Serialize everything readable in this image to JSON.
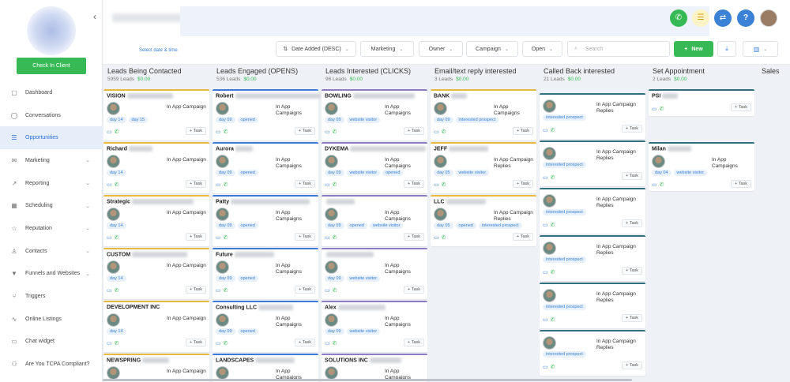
{
  "sidebar": {
    "checkin_label": "Check In Client",
    "items": [
      {
        "label": "Dashboard",
        "icon": "dashboard-icon",
        "glyph": "▢",
        "chev": ""
      },
      {
        "label": "Conversations",
        "icon": "chat-icon",
        "glyph": "◯",
        "chev": ""
      },
      {
        "label": "Opportunities",
        "icon": "opportunities-icon",
        "glyph": "☰",
        "chev": ""
      },
      {
        "label": "Marketing",
        "icon": "mail-icon",
        "glyph": "✉",
        "chev": "⌄"
      },
      {
        "label": "Reporting",
        "icon": "chart-icon",
        "glyph": "↗",
        "chev": "⌄"
      },
      {
        "label": "Scheduling",
        "icon": "calendar-icon",
        "glyph": "▦",
        "chev": "⌄"
      },
      {
        "label": "Reputation",
        "icon": "star-icon",
        "glyph": "☆",
        "chev": "⌄"
      },
      {
        "label": "Contacts",
        "icon": "user-icon",
        "glyph": "♙",
        "chev": "⌄"
      },
      {
        "label": "Funnels and Websites",
        "icon": "funnel-icon",
        "glyph": "▼",
        "chev": "⌄"
      },
      {
        "label": "Triggers",
        "icon": "trigger-icon",
        "glyph": "⑂",
        "chev": ""
      },
      {
        "label": "Online Listings",
        "icon": "pulse-icon",
        "glyph": "∿",
        "chev": ""
      },
      {
        "label": "Chat widget",
        "icon": "chat-widget-icon",
        "glyph": "▭",
        "chev": ""
      },
      {
        "label": "Are You TCPA Compliant?",
        "icon": "group-icon",
        "glyph": "⚇",
        "chev": ""
      }
    ]
  },
  "filters": {
    "date_link": "Select date & time",
    "sort": "Date Added (DESC)",
    "pipeline": "Marketing",
    "owner": "Owner",
    "campaign": "Campaign",
    "status": "Open",
    "search_placeholder": "Search",
    "new_label": "New"
  },
  "columns": [
    {
      "title": "Leads Being Contacted",
      "count": "5959 Leads",
      "amount": "$0.00"
    },
    {
      "title": "Leads Engaged (OPENS)",
      "count": "536 Leads",
      "amount": "$0.00"
    },
    {
      "title": "Leads Interested (CLICKS)",
      "count": "96 Leads",
      "amount": "$0.00"
    },
    {
      "title": "Email/text reply interested",
      "count": "3 Leads",
      "amount": "$0.00"
    },
    {
      "title": "Called Back interested",
      "count": "21 Leads",
      "amount": "$0.00"
    },
    {
      "title": "Set Appointment",
      "count": "2 Leads",
      "amount": "$0.00"
    },
    {
      "title": "Sales",
      "count": "",
      "amount": ""
    }
  ],
  "cards": {
    "c0": [
      {
        "name": "VISION",
        "campaign": "In App Campaign",
        "tags": [
          "day 14",
          "day 15"
        ]
      },
      {
        "name": "Richard",
        "campaign": "In App Campaign",
        "tags": [
          "day 14"
        ]
      },
      {
        "name": "Strategic",
        "campaign": "In App Campaign",
        "tags": [
          "day 14"
        ]
      },
      {
        "name": "CUSTOM",
        "campaign": "In App Campaign",
        "tags": [
          "day 14"
        ]
      },
      {
        "name": "DEVELOPMENT INC",
        "campaign": "In App Campaign",
        "tags": [
          "day 14"
        ]
      },
      {
        "name": "NEWSPRING",
        "campaign": "In App Campaign",
        "tags": []
      }
    ],
    "c1": [
      {
        "name": "Robert",
        "campaign": "In App Campaigns",
        "tags": [
          "day 09",
          "opened"
        ]
      },
      {
        "name": "Aurora",
        "campaign": "In App Campaigns",
        "tags": [
          "day 09",
          "opened"
        ]
      },
      {
        "name": "Patty",
        "campaign": "In App Campaigns",
        "tags": [
          "day 09",
          "opened"
        ]
      },
      {
        "name": "Future",
        "campaign": "In App Campaigns",
        "tags": [
          "day 09",
          "opened"
        ]
      },
      {
        "name": "Consulting LLC",
        "campaign": "In App Campaigns",
        "tags": [
          "day 09",
          "opened"
        ]
      },
      {
        "name": "LANDSCAPES",
        "campaign": "In App Campaigns",
        "tags": []
      }
    ],
    "c2": [
      {
        "name": "BOWLING",
        "campaign": "In App Campaigns",
        "tags": [
          "day 09",
          "website visitor"
        ]
      },
      {
        "name": "DYKEMA",
        "campaign": "In App Campaigns",
        "tags": [
          "day 09",
          "website visitor",
          "opened"
        ]
      },
      {
        "name": "",
        "campaign": "In App Campaigns",
        "tags": [
          "day 09",
          "opened",
          "website visitor"
        ]
      },
      {
        "name": "",
        "campaign": "In App Campaigns",
        "tags": [
          "day 09",
          "website visitor"
        ]
      },
      {
        "name": "Alex",
        "campaign": "In App Campaigns",
        "tags": [
          "day 09",
          "website visitor"
        ]
      },
      {
        "name": "SOLUTIONS INC",
        "campaign": "In App Campaigns",
        "tags": []
      }
    ],
    "c3": [
      {
        "name": "BANK",
        "campaign": "In App Campaigns",
        "tags": [
          "day 09",
          "interested prospect"
        ]
      },
      {
        "name": "JEFF",
        "campaign": "In App Campaign Replies",
        "tags": [
          "day 05",
          "website visitor"
        ]
      },
      {
        "name": "LLC",
        "campaign": "In App Campaign Replies",
        "tags": [
          "day 05",
          "opened",
          "interested prospect"
        ]
      }
    ],
    "c4": [
      {
        "campaign": "In App Campaign Replies",
        "tags": [
          "interested prospect"
        ]
      },
      {
        "campaign": "In App Campaign Replies",
        "tags": [
          "interested prospect"
        ]
      },
      {
        "campaign": "In App Campaign Replies",
        "tags": [
          "interested prospect"
        ]
      },
      {
        "campaign": "In App Campaign Replies",
        "tags": [
          "interested prospect"
        ]
      },
      {
        "campaign": "In App Campaign Replies",
        "tags": [
          "interested prospect"
        ]
      },
      {
        "campaign": "In App Campaign Replies",
        "tags": [
          "interested prospect"
        ]
      }
    ],
    "c5": [
      {
        "name": "PSI",
        "campaign": "",
        "tags": []
      },
      {
        "name": "Milan",
        "campaign": "In App Campaigns",
        "tags": [
          "day 04",
          "website visitor"
        ]
      }
    ]
  },
  "task_label": "+ Task",
  "colors": {
    "accent": "#37ba55",
    "link": "#3b82d6",
    "yellow": "#e7b93e",
    "blue": "#3d7ad8",
    "purple": "#8e7cc3",
    "teal": "#2f6f7e"
  }
}
